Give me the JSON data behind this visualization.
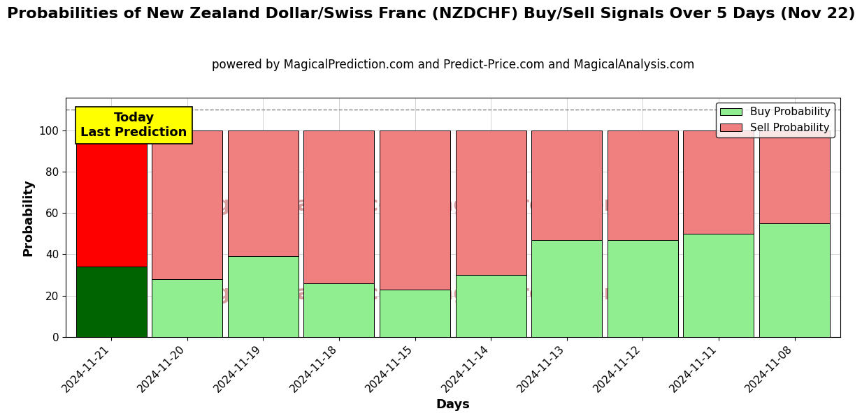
{
  "title": "Probabilities of New Zealand Dollar/Swiss Franc (NZDCHF) Buy/Sell Signals Over 5 Days (Nov 22)",
  "subtitle": "powered by MagicalPrediction.com and Predict-Price.com and MagicalAnalysis.com",
  "xlabel": "Days",
  "ylabel": "Probability",
  "categories": [
    "2024-11-21",
    "2024-11-20",
    "2024-11-19",
    "2024-11-18",
    "2024-11-15",
    "2024-11-14",
    "2024-11-13",
    "2024-11-12",
    "2024-11-11",
    "2024-11-08"
  ],
  "buy_values": [
    34,
    28,
    39,
    26,
    23,
    30,
    47,
    47,
    50,
    55
  ],
  "sell_values": [
    66,
    72,
    61,
    74,
    77,
    70,
    53,
    53,
    50,
    45
  ],
  "buy_colors": [
    "#006400",
    "#90EE90",
    "#90EE90",
    "#90EE90",
    "#90EE90",
    "#90EE90",
    "#90EE90",
    "#90EE90",
    "#90EE90",
    "#90EE90"
  ],
  "sell_colors": [
    "#FF0000",
    "#F08080",
    "#F08080",
    "#F08080",
    "#F08080",
    "#F08080",
    "#F08080",
    "#F08080",
    "#F08080",
    "#F08080"
  ],
  "today_label": "Today\nLast Prediction",
  "today_bg": "#FFFF00",
  "legend_buy_color": "#90EE90",
  "legend_sell_color": "#F08080",
  "dashed_line_y": 110,
  "ylim": [
    0,
    116
  ],
  "yticks": [
    0,
    20,
    40,
    60,
    80,
    100
  ],
  "watermark_color": "#d9a0a0",
  "title_fontsize": 16,
  "subtitle_fontsize": 12,
  "axis_label_fontsize": 13,
  "tick_fontsize": 11,
  "bar_width": 0.93
}
